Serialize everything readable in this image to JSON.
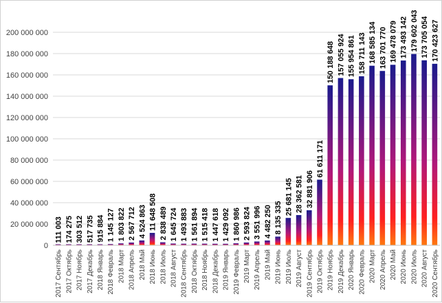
{
  "chart_data": {
    "type": "bar",
    "title": "",
    "xlabel": "",
    "ylabel": "",
    "ylim": [
      0,
      200000000
    ],
    "yticks": [
      0,
      20000000,
      40000000,
      60000000,
      80000000,
      100000000,
      120000000,
      140000000,
      160000000,
      180000000,
      200000000
    ],
    "ytick_labels": [
      "0",
      "20 000 000",
      "40 000 000",
      "60 000 000",
      "80 000 000",
      "100 000 000",
      "120 000 000",
      "140 000 000",
      "160 000 000",
      "180 000 000",
      "200 000 000"
    ],
    "grid": true,
    "legend": "none",
    "bar_gradient": [
      "#1a1a8c",
      "#b0187a",
      "#ff2020",
      "#ff7a10"
    ],
    "categories": [
      "2017 Сентябрь",
      "2017 Октябрь",
      "2017 Ноябрь",
      "2017 Декабрь",
      "2018 Январь",
      "2018 Февраль",
      "2018 Март",
      "2018 Апрель",
      "2018 Май",
      "2018 Июнь",
      "2018 Июль",
      "2018 Август",
      "2018 Сентябрь",
      "2018 Октябрь",
      "2018 Ноябрь",
      "2018 Декабрь",
      "2019 Январь",
      "2019 Февраль",
      "2019 Март",
      "2019 Апрель",
      "2019 Май",
      "2019 Июнь",
      "2019 Июль",
      "2019 Август",
      "2019 Сентябрь",
      "2019 Октябрь",
      "2019 Ноябрь",
      "2019 Декабрь",
      "2020 Январь",
      "2020 Февраль",
      "2020 Март",
      "2020 Апрель",
      "2020 Май",
      "2020 Июнь",
      "2020 Июль",
      "2020 Август",
      "2020 Сентябрь"
    ],
    "values": [
      111003,
      174275,
      303512,
      517735,
      915884,
      1145127,
      1803822,
      2567712,
      4524863,
      11648508,
      2838489,
      1645724,
      1493883,
      1561894,
      1515418,
      1447618,
      1429092,
      1860986,
      2593824,
      3551996,
      4482250,
      8135335,
      25681145,
      28362581,
      32881906,
      61611171,
      150188648,
      157055924,
      155954861,
      158711143,
      168585134,
      163701770,
      169478079,
      173493142,
      179602043,
      173705054,
      170423627
    ],
    "data_labels": [
      "111 003",
      "174 275",
      "303 512",
      "517 735",
      "915 884",
      "1 145 127",
      "1 803 822",
      "2 567 712",
      "4 524 863",
      "11 648 508",
      "2 838 489",
      "1 645 724",
      "1 493 883",
      "1 561 894",
      "1 515 418",
      "1 447 618",
      "1 429 092",
      "1 860 986",
      "2 593 824",
      "3 551 996",
      "4 482 250",
      "8 135 335",
      "25 681 145",
      "28 362 581",
      "32 881 906",
      "61 611 171",
      "150 188 648",
      "157 055 924",
      "155 954 861",
      "158 711 143",
      "168 585 134",
      "163 701 770",
      "169 478 079",
      "173 493 142",
      "179 602 043",
      "173 705 054",
      "170 423 627"
    ]
  }
}
